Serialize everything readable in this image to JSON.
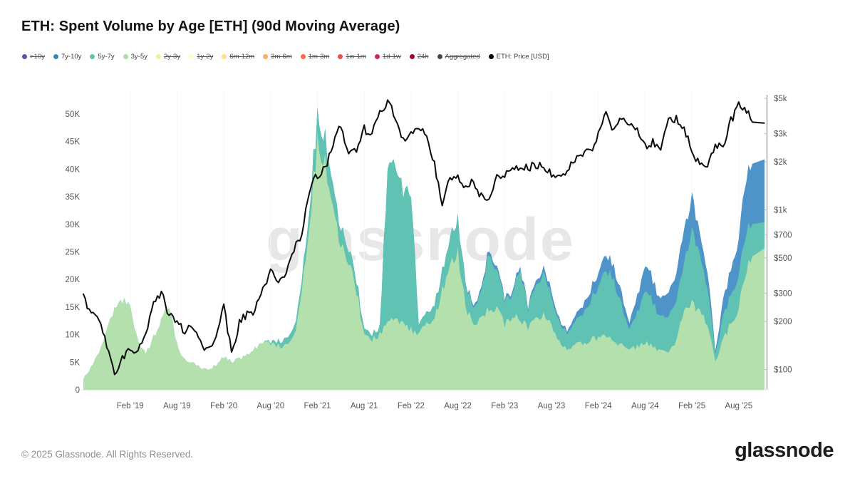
{
  "header": {
    "title": "ETH: Spent Volume by Age [ETH] (90d Moving Average)"
  },
  "watermark": "glassnode",
  "footer": {
    "copyright": "© 2025 Glassnode. All Rights Reserved.",
    "logo_text": "glassnode"
  },
  "legend": {
    "items": [
      {
        "label": ">10y",
        "color": "#5e4fa2",
        "active": false
      },
      {
        "label": "7y-10y",
        "color": "#3288bd",
        "active": true
      },
      {
        "label": "5y-7y",
        "color": "#66c2a5",
        "active": true
      },
      {
        "label": "3y-5y",
        "color": "#abdda4",
        "active": true
      },
      {
        "label": "2y-3y",
        "color": "#e6f598",
        "active": false
      },
      {
        "label": "1y-2y",
        "color": "#ffffbf",
        "active": false
      },
      {
        "label": "6m-12m",
        "color": "#fee08b",
        "active": false
      },
      {
        "label": "3m-6m",
        "color": "#fdae61",
        "active": false
      },
      {
        "label": "1m-3m",
        "color": "#f46d43",
        "active": false
      },
      {
        "label": "1w-1m",
        "color": "#e0544a",
        "active": false
      },
      {
        "label": "1d-1w",
        "color": "#c03150",
        "active": false
      },
      {
        "label": "24h",
        "color": "#9e0142",
        "active": false
      },
      {
        "label": "Aggregated",
        "color": "#47474a",
        "active": false
      },
      {
        "label": "ETH: Price [USD]",
        "color": "#000000",
        "active": true
      }
    ]
  },
  "chart_data": {
    "type": "area",
    "title": "ETH: Spent Volume by Age [ETH] (90d Moving Average)",
    "stacked": true,
    "values_unit": "thousand ETH",
    "legend_position": "top",
    "grid": "minimal",
    "x_monthly": [
      "2018-08",
      "2018-09",
      "2018-10",
      "2018-11",
      "2018-12",
      "2019-01",
      "2019-02",
      "2019-03",
      "2019-04",
      "2019-05",
      "2019-06",
      "2019-07",
      "2019-08",
      "2019-09",
      "2019-10",
      "2019-11",
      "2019-12",
      "2020-01",
      "2020-02",
      "2020-03",
      "2020-04",
      "2020-05",
      "2020-06",
      "2020-07",
      "2020-08",
      "2020-09",
      "2020-10",
      "2020-11",
      "2020-12",
      "2021-01",
      "2021-02",
      "2021-03",
      "2021-04",
      "2021-05",
      "2021-06",
      "2021-07",
      "2021-08",
      "2021-09",
      "2021-10",
      "2021-11",
      "2021-12",
      "2022-01",
      "2022-02",
      "2022-03",
      "2022-04",
      "2022-05",
      "2022-06",
      "2022-07",
      "2022-08",
      "2022-09",
      "2022-10",
      "2022-11",
      "2022-12",
      "2023-01",
      "2023-02",
      "2023-03",
      "2023-04",
      "2023-05",
      "2023-06",
      "2023-07",
      "2023-08",
      "2023-09",
      "2023-10",
      "2023-11",
      "2023-12",
      "2024-01",
      "2024-02",
      "2024-03",
      "2024-04",
      "2024-05",
      "2024-06",
      "2024-07",
      "2024-08",
      "2024-09",
      "2024-10",
      "2024-11",
      "2024-12",
      "2025-01",
      "2025-02",
      "2025-03",
      "2025-04",
      "2025-05",
      "2025-06",
      "2025-07",
      "2025-08",
      "2025-09",
      "2025-10"
    ],
    "series": [
      {
        "name": "3y-5y",
        "kind": "area",
        "axis": "left",
        "fill": "#b3e0ad",
        "values": [
          2,
          4,
          6.5,
          11,
          14.5,
          16,
          15,
          8.5,
          6.5,
          9.5,
          13,
          15,
          8,
          5.5,
          5,
          4,
          3.5,
          4.5,
          6,
          5,
          5.5,
          6.5,
          7.5,
          8.5,
          8.5,
          8,
          8,
          9.5,
          17,
          31,
          44,
          40.5,
          34,
          26,
          22.5,
          18,
          10,
          9,
          10,
          12,
          13,
          12,
          11,
          10,
          12,
          13,
          18,
          24,
          25,
          15,
          12,
          13,
          15,
          15,
          12,
          13.5,
          13,
          11,
          13,
          14,
          12,
          9,
          7.5,
          8,
          8.5,
          9,
          9.5,
          9.6,
          9,
          8,
          7,
          8,
          8.7,
          8,
          7,
          6.5,
          9,
          14,
          16,
          14,
          12,
          5,
          9,
          12,
          15,
          21,
          27
        ]
      },
      {
        "name": "5y-7y",
        "kind": "area",
        "axis": "left",
        "fill": "#5fc2b2",
        "values": [
          0,
          0,
          0,
          0,
          0,
          0,
          0,
          0,
          0,
          0,
          0,
          0,
          0,
          0,
          0,
          0,
          0,
          0,
          0,
          0,
          0,
          0,
          0,
          0,
          0.3,
          0.8,
          1.2,
          1.5,
          2,
          3,
          5,
          4.5,
          4,
          3,
          2.5,
          2,
          1,
          1,
          1.5,
          28,
          29,
          24,
          25,
          1.5,
          2,
          2.5,
          3.5,
          5,
          6,
          4,
          3,
          5,
          10,
          7,
          4.5,
          4,
          9,
          3.5,
          6,
          8,
          5,
          3.5,
          3,
          4,
          5.5,
          7,
          9,
          12,
          11,
          7,
          3.5,
          6,
          9.4,
          8,
          6,
          6.5,
          7,
          9,
          13,
          10,
          7,
          1.5,
          4,
          5.5,
          6,
          7,
          5
        ]
      },
      {
        "name": "7y-10y",
        "kind": "area",
        "axis": "left",
        "fill": "#4e94c9",
        "values": [
          0,
          0,
          0,
          0,
          0,
          0,
          0,
          0,
          0,
          0,
          0,
          0,
          0,
          0,
          0,
          0,
          0,
          0,
          0,
          0,
          0,
          0,
          0,
          0,
          0,
          0,
          0,
          0,
          0,
          0,
          0,
          0,
          0,
          0,
          0,
          0,
          0,
          0,
          0,
          0,
          0,
          0,
          0,
          0,
          0,
          0,
          0,
          0,
          0.3,
          0.3,
          0.4,
          0.6,
          0.7,
          0.7,
          0.5,
          0.6,
          0.6,
          0.5,
          0.8,
          1,
          1,
          0.5,
          0.5,
          1,
          1.5,
          2,
          2.5,
          2.9,
          2.5,
          2,
          1.2,
          3,
          4.8,
          4,
          3,
          4.5,
          5,
          6,
          6,
          4,
          3,
          0.5,
          3,
          4.5,
          7,
          10,
          12
        ]
      },
      {
        "name": "ETH: Price [USD]",
        "kind": "line",
        "axis": "right",
        "stroke": "#0b0b0b",
        "values": [
          280,
          230,
          210,
          140,
          90,
          115,
          135,
          135,
          165,
          255,
          300,
          220,
          190,
          175,
          180,
          150,
          130,
          170,
          250,
          125,
          200,
          220,
          230,
          320,
          420,
          355,
          385,
          570,
          690,
          1350,
          1650,
          1850,
          2500,
          3500,
          2200,
          2300,
          3200,
          3000,
          4200,
          4650,
          3850,
          2700,
          2900,
          3300,
          2950,
          1950,
          1100,
          1600,
          1650,
          1350,
          1550,
          1200,
          1200,
          1600,
          1650,
          1800,
          1900,
          1850,
          1900,
          1870,
          1650,
          1650,
          1800,
          2050,
          2300,
          2300,
          3000,
          3900,
          3100,
          3800,
          3400,
          3250,
          2500,
          2650,
          2500,
          3600,
          3700,
          3200,
          2400,
          1900,
          1800,
          2550,
          2450,
          3600,
          4600,
          4200,
          3500
        ]
      }
    ],
    "y_left": {
      "scale": "linear",
      "range_thousands": [
        0,
        50
      ],
      "ticks": [
        "0",
        "5K",
        "10K",
        "15K",
        "20K",
        "25K",
        "30K",
        "35K",
        "40K",
        "45K",
        "50K"
      ],
      "tick_values": [
        0,
        5,
        10,
        15,
        20,
        25,
        30,
        35,
        40,
        45,
        50
      ]
    },
    "y_right": {
      "scale": "log",
      "ticks": [
        "$100",
        "$200",
        "$300",
        "$500",
        "$700",
        "$1k",
        "$2k",
        "$3k",
        "$5k"
      ],
      "tick_values": [
        100,
        200,
        300,
        500,
        700,
        1000,
        2000,
        3000,
        5000
      ]
    },
    "x_ticks": {
      "labels": [
        "Feb '19",
        "Aug '19",
        "Feb '20",
        "Aug '20",
        "Feb '21",
        "Aug '21",
        "Feb '22",
        "Aug '22",
        "Feb '23",
        "Aug '23",
        "Feb '24",
        "Aug '24",
        "Feb '25",
        "Aug '25"
      ],
      "month_index": [
        6,
        12,
        18,
        24,
        30,
        36,
        42,
        48,
        54,
        60,
        66,
        72,
        78,
        84
      ]
    }
  }
}
